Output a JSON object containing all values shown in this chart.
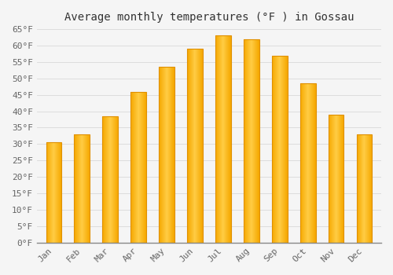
{
  "title": "Average monthly temperatures (°F ) in Gossau",
  "months": [
    "Jan",
    "Feb",
    "Mar",
    "Apr",
    "May",
    "Jun",
    "Jul",
    "Aug",
    "Sep",
    "Oct",
    "Nov",
    "Dec"
  ],
  "values": [
    30.5,
    33.0,
    38.5,
    46.0,
    53.5,
    59.0,
    63.0,
    62.0,
    57.0,
    48.5,
    39.0,
    33.0
  ],
  "bar_color_center": "#FFCC44",
  "bar_color_edge": "#F5A800",
  "bar_color_left": "#FFE070",
  "ylim": [
    0,
    65
  ],
  "yticks": [
    0,
    5,
    10,
    15,
    20,
    25,
    30,
    35,
    40,
    45,
    50,
    55,
    60,
    65
  ],
  "ytick_labels": [
    "0°F",
    "5°F",
    "10°F",
    "15°F",
    "20°F",
    "25°F",
    "30°F",
    "35°F",
    "40°F",
    "45°F",
    "50°F",
    "55°F",
    "60°F",
    "65°F"
  ],
  "background_color": "#f5f5f5",
  "plot_bg_color": "#f5f5f5",
  "grid_color": "#dddddd",
  "title_fontsize": 10,
  "tick_fontsize": 8,
  "font_family": "monospace",
  "bar_width": 0.55
}
